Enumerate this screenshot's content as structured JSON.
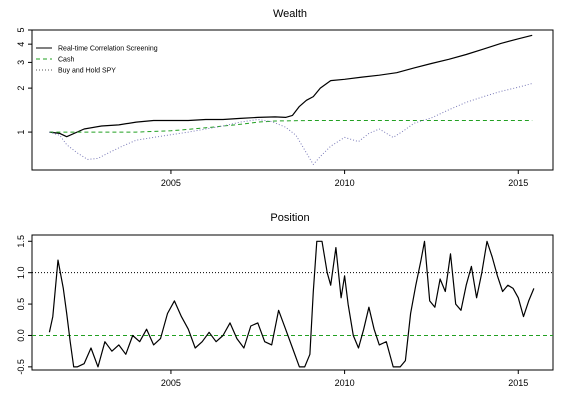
{
  "chart_data": [
    {
      "type": "line",
      "title": "Wealth",
      "xlabel": "",
      "ylabel": "",
      "y_scale": "log",
      "xlim": [
        2001.0,
        2016.0
      ],
      "ylim": [
        0.55,
        5.0
      ],
      "x_ticks": [
        2005,
        2010,
        2015
      ],
      "x_tick_labels": [
        "2005",
        "2010",
        "2015"
      ],
      "y_ticks": [
        1,
        2,
        3,
        4,
        5
      ],
      "y_tick_labels": [
        "1",
        "2",
        "3",
        "4",
        "5"
      ],
      "grid": false,
      "legend_position": "top-left",
      "series": [
        {
          "name": "Real-time Correlation Screening",
          "color": "#000000",
          "style": "solid",
          "x": [
            2001.5,
            2001.8,
            2002.0,
            2002.5,
            2003.0,
            2003.5,
            2004.0,
            2004.5,
            2005.0,
            2005.5,
            2006.0,
            2006.5,
            2007.0,
            2007.5,
            2008.0,
            2008.3,
            2008.5,
            2008.7,
            2008.9,
            2009.1,
            2009.3,
            2009.6,
            2010.0,
            2010.5,
            2011.0,
            2011.5,
            2012.0,
            2012.5,
            2013.0,
            2013.5,
            2014.0,
            2014.5,
            2015.0,
            2015.4
          ],
          "y": [
            1.0,
            0.98,
            0.93,
            1.05,
            1.1,
            1.12,
            1.17,
            1.2,
            1.2,
            1.2,
            1.22,
            1.22,
            1.24,
            1.26,
            1.27,
            1.26,
            1.3,
            1.5,
            1.65,
            1.75,
            2.0,
            2.25,
            2.3,
            2.38,
            2.45,
            2.55,
            2.75,
            2.95,
            3.15,
            3.4,
            3.7,
            4.05,
            4.35,
            4.6
          ]
        },
        {
          "name": "Cash",
          "color": "#22a022",
          "style": "dashed",
          "x": [
            2001.5,
            2002.0,
            2003.0,
            2004.0,
            2005.0,
            2006.0,
            2007.0,
            2007.5,
            2008.0,
            2009.0,
            2010.0,
            2015.4
          ],
          "y": [
            1.0,
            1.0,
            1.0,
            1.0,
            1.02,
            1.07,
            1.13,
            1.17,
            1.19,
            1.2,
            1.2,
            1.2
          ]
        },
        {
          "name": "Buy and Hold SPY",
          "color": "#7a7ab8",
          "style": "dotted",
          "x": [
            2001.5,
            2001.8,
            2002.0,
            2002.3,
            2002.6,
            2002.9,
            2003.2,
            2003.6,
            2004.0,
            2004.5,
            2005.0,
            2005.5,
            2006.0,
            2006.5,
            2007.0,
            2007.5,
            2007.9,
            2008.3,
            2008.6,
            2008.9,
            2009.1,
            2009.3,
            2009.6,
            2010.0,
            2010.4,
            2010.7,
            2011.0,
            2011.4,
            2011.7,
            2012.0,
            2012.5,
            2013.0,
            2013.5,
            2014.0,
            2014.5,
            2015.0,
            2015.4
          ],
          "y": [
            1.0,
            0.95,
            0.82,
            0.72,
            0.65,
            0.66,
            0.72,
            0.8,
            0.88,
            0.92,
            0.96,
            1.0,
            1.05,
            1.1,
            1.17,
            1.22,
            1.18,
            1.08,
            0.95,
            0.72,
            0.6,
            0.68,
            0.8,
            0.92,
            0.86,
            0.98,
            1.05,
            0.92,
            1.02,
            1.15,
            1.25,
            1.42,
            1.6,
            1.75,
            1.9,
            2.03,
            2.15
          ]
        }
      ]
    },
    {
      "type": "line",
      "title": "Position",
      "xlabel": "",
      "ylabel": "",
      "xlim": [
        2001.0,
        2016.0
      ],
      "ylim": [
        -0.55,
        1.6
      ],
      "x_ticks": [
        2005,
        2010,
        2015
      ],
      "x_tick_labels": [
        "2005",
        "2010",
        "2015"
      ],
      "y_ticks": [
        -0.5,
        0.0,
        0.5,
        1.0,
        1.5
      ],
      "y_tick_labels": [
        "-0.5",
        "0.0",
        "0.5",
        "1.0",
        "1.5"
      ],
      "grid": false,
      "reference_lines": [
        {
          "y": 1.0,
          "color": "#000000",
          "style": "dotted"
        },
        {
          "y": 0.0,
          "color": "#22a022",
          "style": "dashed"
        }
      ],
      "series": [
        {
          "color": "#000000",
          "style": "solid",
          "x": [
            2001.5,
            2001.6,
            2001.75,
            2001.9,
            2002.0,
            2002.1,
            2002.2,
            2002.3,
            2002.5,
            2002.7,
            2002.9,
            2003.1,
            2003.3,
            2003.5,
            2003.7,
            2003.9,
            2004.1,
            2004.3,
            2004.5,
            2004.7,
            2004.9,
            2005.1,
            2005.3,
            2005.5,
            2005.7,
            2005.9,
            2006.1,
            2006.3,
            2006.5,
            2006.7,
            2006.9,
            2007.1,
            2007.3,
            2007.5,
            2007.7,
            2007.9,
            2008.1,
            2008.3,
            2008.5,
            2008.7,
            2008.85,
            2009.0,
            2009.1,
            2009.2,
            2009.35,
            2009.5,
            2009.6,
            2009.75,
            2009.9,
            2010.0,
            2010.1,
            2010.25,
            2010.4,
            2010.55,
            2010.7,
            2010.85,
            2011.0,
            2011.2,
            2011.4,
            2011.6,
            2011.75,
            2011.9,
            2012.05,
            2012.2,
            2012.3,
            2012.45,
            2012.6,
            2012.75,
            2012.9,
            2013.05,
            2013.2,
            2013.35,
            2013.5,
            2013.65,
            2013.8,
            2013.95,
            2014.1,
            2014.25,
            2014.4,
            2014.55,
            2014.7,
            2014.85,
            2015.0,
            2015.15,
            2015.3,
            2015.45
          ],
          "y": [
            0.05,
            0.3,
            1.2,
            0.75,
            0.35,
            -0.1,
            -0.5,
            -0.5,
            -0.45,
            -0.2,
            -0.5,
            -0.1,
            -0.25,
            -0.15,
            -0.3,
            0.0,
            -0.1,
            0.1,
            -0.15,
            -0.05,
            0.35,
            0.55,
            0.3,
            0.1,
            -0.2,
            -0.1,
            0.05,
            -0.1,
            0.0,
            0.2,
            -0.05,
            -0.2,
            0.15,
            0.2,
            -0.1,
            -0.15,
            0.4,
            0.1,
            -0.2,
            -0.5,
            -0.5,
            -0.3,
            0.7,
            1.5,
            1.5,
            1.0,
            0.8,
            1.4,
            0.6,
            0.95,
            0.5,
            0.0,
            -0.2,
            0.1,
            0.45,
            0.1,
            -0.15,
            -0.1,
            -0.5,
            -0.5,
            -0.4,
            0.35,
            0.8,
            1.2,
            1.5,
            0.55,
            0.45,
            0.9,
            0.7,
            1.3,
            0.5,
            0.4,
            0.8,
            1.1,
            0.6,
            1.0,
            1.5,
            1.25,
            0.95,
            0.7,
            0.8,
            0.75,
            0.6,
            0.3,
            0.55,
            0.75
          ]
        }
      ]
    }
  ]
}
